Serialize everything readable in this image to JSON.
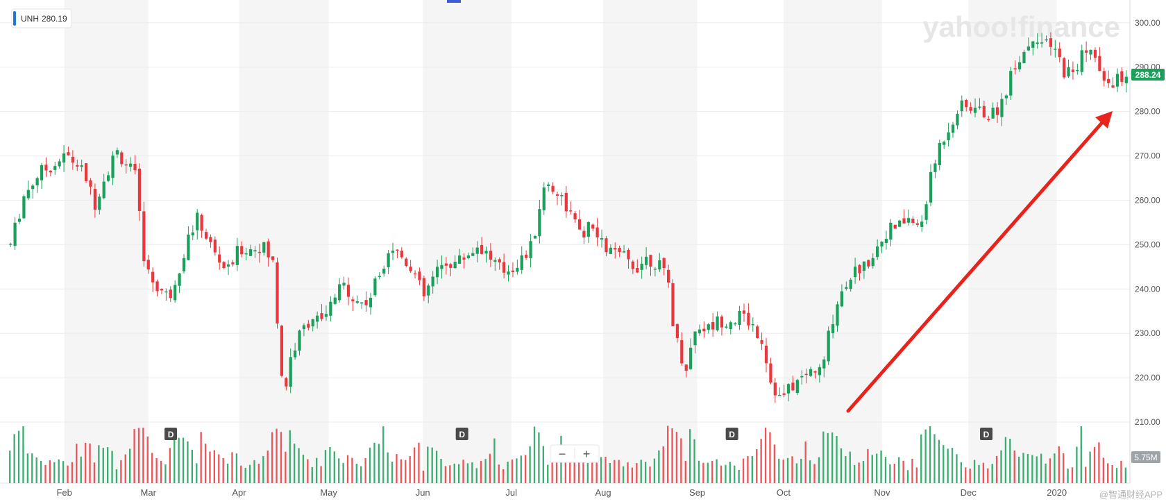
{
  "ticker_label": {
    "symbol": "UNH",
    "value": "280.19"
  },
  "watermark": {
    "brand": "yahoo!finance"
  },
  "last_price_tag": "288.24",
  "volume_tag": "5.75M",
  "corner_watermark": "@智通财经APP",
  "zoom": {
    "minus": "−",
    "plus": "+"
  },
  "colors": {
    "up": "#1aa05a",
    "down": "#e8383d",
    "arrow": "#e8231c",
    "price_tag": "#1aa05a",
    "volume_tag": "#9ea3a8",
    "band": "#f5f5f5"
  },
  "chart_data": {
    "type": "candlestick",
    "ylim": [
      205,
      302
    ],
    "yticks": [
      "210.00",
      "220.00",
      "230.00",
      "240.00",
      "250.00",
      "260.00",
      "270.00",
      "280.00",
      "290.00",
      "300.00"
    ],
    "ytick_values": [
      210,
      220,
      230,
      240,
      250,
      260,
      270,
      280,
      290,
      300
    ],
    "xlabels": [
      {
        "label": "Feb",
        "t": 0.05
      },
      {
        "label": "Mar",
        "t": 0.125
      },
      {
        "label": "Apr",
        "t": 0.206
      },
      {
        "label": "May",
        "t": 0.286
      },
      {
        "label": "Jun",
        "t": 0.37
      },
      {
        "label": "Jul",
        "t": 0.449
      },
      {
        "label": "Aug",
        "t": 0.531
      },
      {
        "label": "Sep",
        "t": 0.615
      },
      {
        "label": "Oct",
        "t": 0.692
      },
      {
        "label": "Nov",
        "t": 0.78
      },
      {
        "label": "Dec",
        "t": 0.857
      },
      {
        "label": "2020",
        "t": 0.936
      }
    ],
    "dividend_marker": "D",
    "dividend_positions": [
      0.145,
      0.405,
      0.646,
      0.873
    ],
    "anchors": [
      [
        0,
        250
      ],
      [
        0.012,
        261
      ],
      [
        0.025,
        266
      ],
      [
        0.038,
        268
      ],
      [
        0.05,
        270
      ],
      [
        0.06,
        268
      ],
      [
        0.068,
        265
      ],
      [
        0.075,
        259
      ],
      [
        0.082,
        264
      ],
      [
        0.095,
        271
      ],
      [
        0.105,
        268
      ],
      [
        0.112,
        265
      ],
      [
        0.118,
        250
      ],
      [
        0.122,
        244
      ],
      [
        0.13,
        241
      ],
      [
        0.142,
        238
      ],
      [
        0.15,
        244
      ],
      [
        0.16,
        252
      ],
      [
        0.168,
        256
      ],
      [
        0.175,
        252
      ],
      [
        0.185,
        247
      ],
      [
        0.195,
        244
      ],
      [
        0.205,
        249
      ],
      [
        0.215,
        249
      ],
      [
        0.225,
        250
      ],
      [
        0.235,
        246
      ],
      [
        0.24,
        230
      ],
      [
        0.245,
        215
      ],
      [
        0.25,
        224
      ],
      [
        0.26,
        230
      ],
      [
        0.27,
        234
      ],
      [
        0.28,
        232
      ],
      [
        0.29,
        238
      ],
      [
        0.3,
        241
      ],
      [
        0.31,
        237
      ],
      [
        0.32,
        237
      ],
      [
        0.33,
        243
      ],
      [
        0.34,
        250
      ],
      [
        0.352,
        247
      ],
      [
        0.36,
        245
      ],
      [
        0.37,
        238
      ],
      [
        0.38,
        243
      ],
      [
        0.39,
        246
      ],
      [
        0.4,
        246
      ],
      [
        0.41,
        248
      ],
      [
        0.42,
        250
      ],
      [
        0.43,
        247
      ],
      [
        0.44,
        244
      ],
      [
        0.45,
        245
      ],
      [
        0.46,
        247
      ],
      [
        0.468,
        250
      ],
      [
        0.475,
        260
      ],
      [
        0.48,
        264
      ],
      [
        0.49,
        262
      ],
      [
        0.5,
        258
      ],
      [
        0.51,
        252
      ],
      [
        0.52,
        254
      ],
      [
        0.53,
        250
      ],
      [
        0.54,
        248
      ],
      [
        0.55,
        247
      ],
      [
        0.56,
        245
      ],
      [
        0.57,
        247
      ],
      [
        0.58,
        246
      ],
      [
        0.59,
        241
      ],
      [
        0.595,
        230
      ],
      [
        0.605,
        222
      ],
      [
        0.615,
        232
      ],
      [
        0.625,
        231
      ],
      [
        0.635,
        233
      ],
      [
        0.645,
        233
      ],
      [
        0.655,
        234
      ],
      [
        0.665,
        232
      ],
      [
        0.675,
        228
      ],
      [
        0.68,
        220
      ],
      [
        0.69,
        215
      ],
      [
        0.7,
        218
      ],
      [
        0.71,
        220
      ],
      [
        0.72,
        222
      ],
      [
        0.727,
        221
      ],
      [
        0.735,
        232
      ],
      [
        0.745,
        240
      ],
      [
        0.755,
        244
      ],
      [
        0.765,
        245
      ],
      [
        0.775,
        249
      ],
      [
        0.785,
        253
      ],
      [
        0.795,
        254
      ],
      [
        0.805,
        256
      ],
      [
        0.815,
        253
      ],
      [
        0.822,
        262
      ],
      [
        0.832,
        272
      ],
      [
        0.84,
        276
      ],
      [
        0.85,
        281
      ],
      [
        0.86,
        281
      ],
      [
        0.87,
        280
      ],
      [
        0.88,
        279
      ],
      [
        0.89,
        283
      ],
      [
        0.9,
        291
      ],
      [
        0.91,
        294
      ],
      [
        0.918,
        298
      ],
      [
        0.925,
        295
      ],
      [
        0.935,
        294
      ],
      [
        0.945,
        289
      ],
      [
        0.955,
        289
      ],
      [
        0.963,
        295
      ],
      [
        0.97,
        293
      ],
      [
        0.98,
        286
      ],
      [
        1.0,
        288
      ]
    ]
  }
}
